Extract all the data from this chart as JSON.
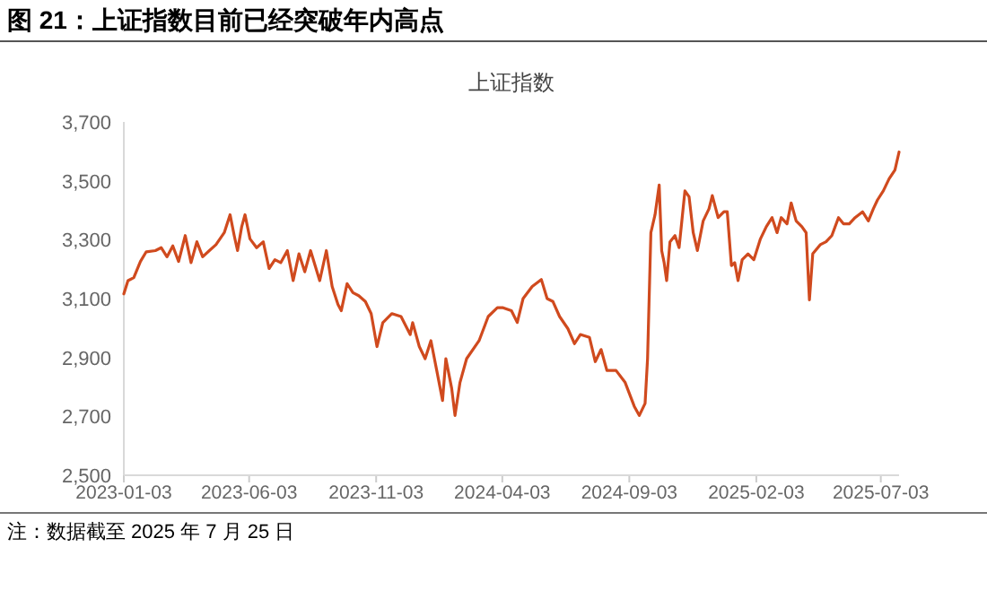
{
  "chart_data": {
    "type": "line",
    "title": "图 21：上证指数目前已经突破年内高点",
    "subtitle": "上证指数",
    "annotations": [
      "注：数据截至 2025 年 7 月 25 日"
    ],
    "xlim": [
      "2023-01-03",
      "2025-07-25"
    ],
    "xticks": [
      {
        "value": "2023-01-03",
        "label": "2023-01-03"
      },
      {
        "value": "2023-06-03",
        "label": "2023-06-03"
      },
      {
        "value": "2023-11-03",
        "label": "2023-11-03"
      },
      {
        "value": "2024-04-03",
        "label": "2024-04-03"
      },
      {
        "value": "2024-09-03",
        "label": "2024-09-03"
      },
      {
        "value": "2025-02-03",
        "label": "2025-02-03"
      },
      {
        "value": "2025-07-03",
        "label": "2025-07-03"
      }
    ],
    "ylim": [
      2500,
      3700
    ],
    "yticks": [
      {
        "value": 2500,
        "label": "2,500"
      },
      {
        "value": 2700,
        "label": "2,700"
      },
      {
        "value": 2900,
        "label": "2,900"
      },
      {
        "value": 3100,
        "label": "3,100"
      },
      {
        "value": 3300,
        "label": "3,300"
      },
      {
        "value": 3500,
        "label": "3,500"
      },
      {
        "value": 3700,
        "label": "3,700"
      }
    ],
    "grid": false,
    "marker": "none",
    "line_style": "solid",
    "x": [
      "2023-01-03",
      "2023-01-08",
      "2023-01-15",
      "2023-01-23",
      "2023-01-30",
      "2023-02-10",
      "2023-02-17",
      "2023-02-24",
      "2023-03-03",
      "2023-03-10",
      "2023-03-18",
      "2023-03-25",
      "2023-04-01",
      "2023-04-08",
      "2023-04-16",
      "2023-04-24",
      "2023-05-04",
      "2023-05-11",
      "2023-05-16",
      "2023-05-20",
      "2023-05-25",
      "2023-05-29",
      "2023-06-04",
      "2023-06-12",
      "2023-06-20",
      "2023-06-27",
      "2023-07-04",
      "2023-07-11",
      "2023-07-19",
      "2023-07-26",
      "2023-08-02",
      "2023-08-09",
      "2023-08-16",
      "2023-08-27",
      "2023-09-04",
      "2023-09-11",
      "2023-09-18",
      "2023-09-22",
      "2023-09-29",
      "2023-10-06",
      "2023-10-13",
      "2023-10-21",
      "2023-10-28",
      "2023-11-04",
      "2023-11-11",
      "2023-11-22",
      "2023-12-03",
      "2023-12-14",
      "2023-12-17",
      "2023-12-25",
      "2024-01-01",
      "2024-01-08",
      "2024-01-15",
      "2024-01-22",
      "2024-01-26",
      "2024-02-02",
      "2024-02-06",
      "2024-02-12",
      "2024-02-20",
      "2024-03-06",
      "2024-03-17",
      "2024-03-28",
      "2024-04-04",
      "2024-04-14",
      "2024-04-21",
      "2024-04-28",
      "2024-05-09",
      "2024-05-20",
      "2024-05-27",
      "2024-06-03",
      "2024-06-11",
      "2024-06-21",
      "2024-06-29",
      "2024-07-06",
      "2024-07-17",
      "2024-07-24",
      "2024-07-31",
      "2024-08-07",
      "2024-08-18",
      "2024-08-29",
      "2024-09-09",
      "2024-09-15",
      "2024-09-22",
      "2024-09-25",
      "2024-09-29",
      "2024-10-04",
      "2024-10-09",
      "2024-10-12",
      "2024-10-15",
      "2024-10-18",
      "2024-10-22",
      "2024-10-28",
      "2024-11-02",
      "2024-11-09",
      "2024-11-14",
      "2024-11-19",
      "2024-11-24",
      "2024-12-01",
      "2024-12-08",
      "2024-12-12",
      "2024-12-19",
      "2024-12-26",
      "2024-12-30",
      "2025-01-04",
      "2025-01-08",
      "2025-01-12",
      "2025-01-17",
      "2025-01-24",
      "2025-01-31",
      "2025-02-08",
      "2025-02-15",
      "2025-02-22",
      "2025-02-28",
      "2025-03-05",
      "2025-03-12",
      "2025-03-17",
      "2025-03-23",
      "2025-03-30",
      "2025-04-04",
      "2025-04-08",
      "2025-04-12",
      "2025-04-21",
      "2025-04-28",
      "2025-05-05",
      "2025-05-13",
      "2025-05-19",
      "2025-05-26",
      "2025-06-02",
      "2025-06-11",
      "2025-06-18",
      "2025-06-24",
      "2025-06-29",
      "2025-07-06",
      "2025-07-13",
      "2025-07-20",
      "2025-07-25"
    ],
    "series": [
      {
        "color": "#d04a1e",
        "values": [
          3116,
          3161,
          3171,
          3226,
          3259,
          3263,
          3273,
          3242,
          3279,
          3226,
          3314,
          3222,
          3293,
          3242,
          3263,
          3283,
          3324,
          3385,
          3314,
          3263,
          3344,
          3385,
          3303,
          3273,
          3293,
          3202,
          3232,
          3222,
          3263,
          3161,
          3252,
          3191,
          3263,
          3161,
          3263,
          3141,
          3080,
          3059,
          3151,
          3120,
          3110,
          3090,
          3049,
          2937,
          3018,
          3049,
          3039,
          2978,
          3018,
          2937,
          2896,
          2957,
          2856,
          2754,
          2896,
          2795,
          2703,
          2815,
          2896,
          2957,
          3039,
          3069,
          3069,
          3059,
          3019,
          3100,
          3141,
          3165,
          3100,
          3090,
          3039,
          2998,
          2947,
          2978,
          2968,
          2886,
          2927,
          2856,
          2856,
          2815,
          2734,
          2703,
          2744,
          2896,
          3324,
          3385,
          3486,
          3263,
          3222,
          3161,
          3293,
          3314,
          3273,
          3466,
          3446,
          3324,
          3263,
          3364,
          3405,
          3450,
          3375,
          3395,
          3395,
          3212,
          3222,
          3161,
          3232,
          3252,
          3232,
          3303,
          3344,
          3375,
          3324,
          3375,
          3354,
          3425,
          3364,
          3344,
          3324,
          3096,
          3252,
          3283,
          3293,
          3314,
          3375,
          3354,
          3354,
          3375,
          3395,
          3364,
          3405,
          3435,
          3466,
          3507,
          3537,
          3598
        ]
      }
    ]
  }
}
